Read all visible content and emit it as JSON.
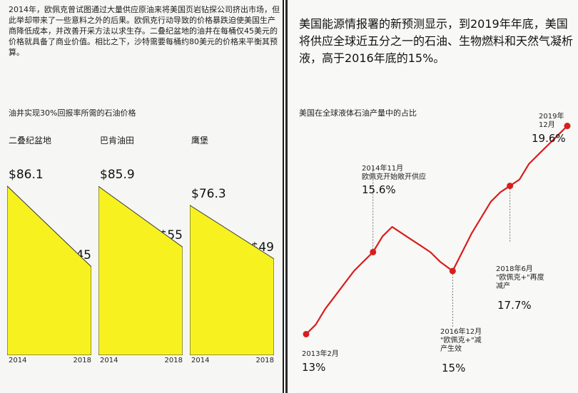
{
  "left": {
    "intro": "2014年，欧佩克曾试图通过大量供应原油来将美国页岩钻探公司挤出市场，但此举却带来了一些意料之外的后果。欧佩克行动导致的价格暴跌迫使美国生产商降低成本，并改善开采方法以求生存。二叠纪盆地的油井在每桶仅45美元的价格就具备了商业价值。相比之下，沙特需要每桶约80美元的价格来平衡其预算。",
    "chart_title": "油井实现30%回报率所需的石油价格"
  },
  "right": {
    "headline": "美国能源情报署的新预测显示，到2019年年底，美国将供应全球近五分之一的石油、生物燃料和天然气凝析液，高于2016年底的15%。",
    "chart_title": "美国在全球液体石油产量中的占比"
  },
  "chart_data": [
    {
      "type": "area",
      "title": "油井实现30%回报率所需的石油价格",
      "panels": [
        {
          "name": "二叠纪盆地",
          "x": [
            "2014",
            "2018"
          ],
          "values": [
            86.1,
            45
          ],
          "labels": [
            "$86.1",
            "$45"
          ]
        },
        {
          "name": "巴肯油田",
          "x": [
            "2014",
            "2018"
          ],
          "values": [
            85.9,
            55
          ],
          "labels": [
            "$85.9",
            "$55"
          ]
        },
        {
          "name": "鹰堡",
          "x": [
            "2014",
            "2018"
          ],
          "values": [
            76.3,
            49
          ],
          "labels": [
            "$76.3",
            "$49"
          ]
        }
      ],
      "ylim": [
        0,
        90
      ],
      "fill_color": "#f7f21f"
    },
    {
      "type": "line",
      "title": "美国在全球液体石油产量中的占比",
      "line_color": "#d81e1e",
      "x": [
        "2013-02",
        "2013-05",
        "2013-08",
        "2013-11",
        "2014-02",
        "2014-05",
        "2014-08",
        "2014-11",
        "2015-02",
        "2015-05",
        "2015-08",
        "2015-11",
        "2016-02",
        "2016-05",
        "2016-08",
        "2016-12",
        "2017-03",
        "2017-06",
        "2017-09",
        "2017-12",
        "2018-03",
        "2018-06",
        "2018-09",
        "2018-12",
        "2019-03",
        "2019-06",
        "2019-09",
        "2019-12"
      ],
      "y": [
        13.0,
        13.3,
        13.8,
        14.2,
        14.6,
        15.0,
        15.3,
        15.6,
        16.1,
        16.4,
        16.2,
        16.0,
        15.8,
        15.6,
        15.3,
        15.0,
        15.6,
        16.2,
        16.7,
        17.2,
        17.5,
        17.7,
        17.9,
        18.4,
        18.7,
        19.0,
        19.3,
        19.6
      ],
      "highlights": [
        {
          "x": "2013-02",
          "y": 13.0,
          "label": "2013年2月",
          "value": "13%"
        },
        {
          "x": "2014-11",
          "y": 15.6,
          "label": "2014年11月\n欧佩克开始敞开供应",
          "value": "15.6%"
        },
        {
          "x": "2016-12",
          "y": 15.0,
          "label": "2016年12月\n\"欧佩克+\"减\n产生效",
          "value": "15%"
        },
        {
          "x": "2018-06",
          "y": 17.7,
          "label": "2018年6月\n\"欧佩克+\"再度\n减产",
          "value": "17.7%"
        },
        {
          "x": "2019-12",
          "y": 19.6,
          "label": "2019年\n12月",
          "value": "19.6%"
        }
      ],
      "ylim": [
        12.4,
        20.2
      ]
    }
  ]
}
